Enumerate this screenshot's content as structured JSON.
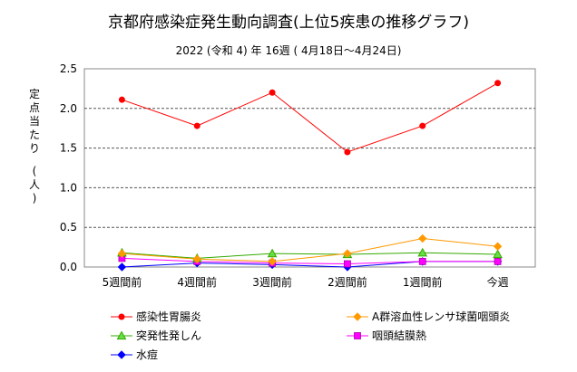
{
  "chart_data": {
    "type": "line",
    "title": "京都府感染症発生動向調査(上位5疾患の推移グラフ)",
    "subtitle": "2022 (令和 4) 年 16週 ( 4月18日〜4月24日)",
    "ylabel": "定点当たり (人)",
    "xlabel": "",
    "categories": [
      "5週間前",
      "4週間前",
      "3週間前",
      "2週間前",
      "1週間前",
      "今週"
    ],
    "ylim": [
      0.0,
      2.5
    ],
    "yticks": [
      "0.0",
      "0.5",
      "1.0",
      "1.5",
      "2.0",
      "2.5"
    ],
    "grid": "horizontal dashed",
    "legend_position": "bottom",
    "series": [
      {
        "name": "感染性胃腸炎",
        "values": [
          2.11,
          1.78,
          2.2,
          1.45,
          1.78,
          2.32
        ],
        "color": "#ff0000",
        "marker": "circle"
      },
      {
        "name": "A群溶血性レンサ球菌咽頭炎",
        "values": [
          0.17,
          0.1,
          0.07,
          0.17,
          0.36,
          0.26
        ],
        "color": "#ff9900",
        "marker": "diamond"
      },
      {
        "name": "突発性発しん",
        "values": [
          0.18,
          0.11,
          0.17,
          0.16,
          0.18,
          0.16
        ],
        "color": "#33aa00",
        "marker": "triangle"
      },
      {
        "name": "咽頭結膜熱",
        "values": [
          0.11,
          0.07,
          0.05,
          0.04,
          0.07,
          0.07
        ],
        "color": "#ff00ff",
        "marker": "square"
      },
      {
        "name": "水痘",
        "values": [
          0.0,
          0.05,
          0.03,
          0.0,
          0.07,
          0.07
        ],
        "color": "#0000ff",
        "marker": "diamond"
      }
    ]
  }
}
